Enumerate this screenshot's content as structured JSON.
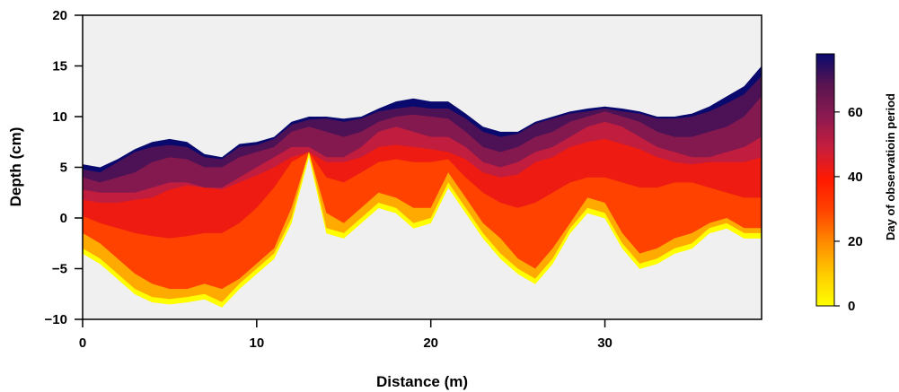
{
  "chart_data": {
    "type": "area",
    "title": "",
    "xlabel": "Distance (m)",
    "ylabel": "Depth (cm)",
    "xlim": [
      0,
      39
    ],
    "ylim": [
      -10,
      20
    ],
    "x_ticks": [
      0,
      10,
      20,
      30
    ],
    "y_ticks": [
      -10,
      -5,
      0,
      5,
      10,
      15,
      20
    ],
    "colorbar": {
      "label": "Day of observatioin period",
      "range": [
        0,
        78
      ],
      "ticks": [
        0,
        20,
        40,
        60
      ],
      "colors": [
        "#ffff00",
        "#ffcc00",
        "#ff8c00",
        "#ff4500",
        "#ff1a00",
        "#c81e3c",
        "#8c1a50",
        "#5a1450",
        "#0a0a6e"
      ]
    },
    "baseline_color": "#f0f0f0",
    "profile_x": [
      0,
      1,
      2,
      3,
      4,
      5,
      6,
      7,
      8,
      9,
      10,
      11,
      12,
      13,
      14,
      15,
      16,
      17,
      18,
      19,
      20,
      21,
      22,
      23,
      24,
      25,
      26,
      27,
      28,
      29,
      30,
      31,
      32,
      33,
      34,
      35,
      36,
      37,
      38,
      39
    ],
    "series": [
      {
        "day": 78,
        "values": [
          5.3,
          5.0,
          5.8,
          6.8,
          7.5,
          7.8,
          7.5,
          6.3,
          6.0,
          7.3,
          7.5,
          8.0,
          9.5,
          10.0,
          10.0,
          9.8,
          10.0,
          10.8,
          11.5,
          11.8,
          11.5,
          11.5,
          10.3,
          9.0,
          8.5,
          8.5,
          9.5,
          10.0,
          10.5,
          10.8,
          11.0,
          10.8,
          10.5,
          10.0,
          10.0,
          10.3,
          11.0,
          12.0,
          13.0,
          15.0
        ]
      },
      {
        "day": 70,
        "values": [
          4.8,
          4.5,
          5.5,
          6.5,
          7.0,
          7.2,
          7.0,
          6.0,
          5.8,
          7.0,
          7.2,
          7.8,
          9.2,
          9.7,
          9.8,
          9.5,
          9.8,
          10.5,
          10.8,
          11.0,
          10.8,
          10.8,
          9.8,
          8.5,
          8.0,
          8.3,
          9.3,
          9.8,
          10.3,
          10.5,
          10.8,
          10.5,
          10.3,
          9.8,
          9.8,
          10.0,
          10.5,
          11.3,
          12.2,
          14.0
        ]
      },
      {
        "day": 60,
        "values": [
          4.0,
          3.5,
          4.0,
          4.5,
          5.5,
          6.0,
          5.8,
          5.0,
          5.0,
          6.0,
          6.5,
          7.0,
          8.5,
          9.0,
          8.5,
          8.0,
          8.5,
          9.5,
          10.0,
          10.2,
          10.0,
          9.8,
          8.5,
          7.0,
          6.5,
          7.0,
          8.0,
          8.5,
          9.5,
          10.0,
          10.5,
          10.0,
          9.5,
          8.5,
          8.0,
          8.0,
          8.5,
          9.0,
          10.0,
          12.0
        ]
      },
      {
        "day": 50,
        "values": [
          2.8,
          2.5,
          2.5,
          2.5,
          3.0,
          3.5,
          3.5,
          3.0,
          3.0,
          4.0,
          5.0,
          6.0,
          7.0,
          7.0,
          6.0,
          6.0,
          7.0,
          8.5,
          9.0,
          8.5,
          8.0,
          8.0,
          7.0,
          5.5,
          5.0,
          5.5,
          6.5,
          7.0,
          8.0,
          9.0,
          9.5,
          9.0,
          8.0,
          7.0,
          6.5,
          6.0,
          6.0,
          6.5,
          7.0,
          8.0
        ]
      },
      {
        "day": 42,
        "values": [
          1.8,
          1.5,
          1.5,
          1.8,
          2.0,
          2.8,
          3.2,
          3.0,
          2.8,
          3.5,
          4.2,
          5.0,
          6.0,
          6.5,
          5.5,
          5.5,
          6.0,
          7.0,
          7.2,
          7.0,
          6.8,
          6.5,
          5.8,
          4.5,
          4.0,
          4.3,
          5.5,
          6.0,
          7.0,
          7.5,
          7.8,
          7.3,
          6.8,
          6.0,
          5.5,
          5.3,
          5.5,
          5.5,
          5.5,
          6.0
        ]
      },
      {
        "day": 30,
        "values": [
          0.2,
          -0.5,
          -1.0,
          -1.5,
          -1.8,
          -2.0,
          -1.8,
          -1.5,
          -1.5,
          -0.5,
          1.0,
          3.0,
          5.5,
          6.5,
          4.0,
          3.5,
          4.5,
          5.5,
          5.8,
          5.5,
          5.5,
          5.8,
          4.0,
          2.5,
          1.5,
          1.0,
          1.5,
          2.5,
          3.5,
          4.0,
          4.0,
          3.5,
          3.0,
          3.0,
          3.5,
          3.5,
          3.0,
          2.5,
          2.0,
          2.0
        ]
      },
      {
        "day": 15,
        "values": [
          -1.5,
          -2.5,
          -4.0,
          -5.5,
          -6.5,
          -7.0,
          -7.0,
          -6.5,
          -7.0,
          -6.0,
          -4.5,
          -3.0,
          1.0,
          6.5,
          0.5,
          -0.5,
          1.0,
          2.5,
          2.0,
          1.0,
          1.0,
          4.5,
          2.0,
          -0.5,
          -2.0,
          -4.0,
          -5.0,
          -3.0,
          -0.5,
          2.0,
          1.5,
          -1.5,
          -3.5,
          -3.0,
          -2.0,
          -1.5,
          -0.5,
          0.0,
          -1.0,
          -1.0
        ]
      },
      {
        "day": 0,
        "values": [
          -3.0,
          -4.0,
          -5.5,
          -7.0,
          -7.8,
          -8.0,
          -7.8,
          -7.5,
          -8.3,
          -6.5,
          -5.0,
          -3.5,
          0.0,
          6.5,
          -1.0,
          -1.5,
          0.0,
          1.5,
          1.0,
          -0.5,
          0.0,
          3.5,
          1.0,
          -1.5,
          -3.5,
          -5.0,
          -6.0,
          -4.0,
          -1.0,
          1.0,
          0.5,
          -2.5,
          -4.5,
          -4.0,
          -3.0,
          -2.5,
          -1.0,
          -0.5,
          -1.5,
          -1.5
        ]
      }
    ]
  }
}
